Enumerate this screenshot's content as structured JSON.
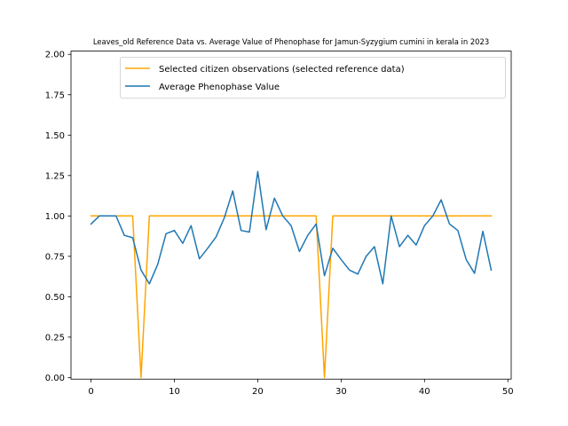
{
  "chart_data": {
    "type": "line",
    "title": "Leaves_old Reference Data vs. Average Value of Phenophase for Jamun-Syzygium cumini in kerala in 2023",
    "xlabel": "",
    "ylabel": "",
    "xlim": [
      -2.4,
      50.4
    ],
    "ylim": [
      -0.01,
      2.02
    ],
    "xticks": [
      0,
      10,
      20,
      30,
      40,
      50
    ],
    "yticks": [
      0.0,
      0.25,
      0.5,
      0.75,
      1.0,
      1.25,
      1.5,
      1.75,
      2.0
    ],
    "grid": false,
    "legend_position": "top-right",
    "series": [
      {
        "name": "Selected citizen observations (selected reference data)",
        "color": "#ffa500",
        "x": [
          0,
          1,
          2,
          3,
          4,
          5,
          6,
          7,
          8,
          9,
          10,
          11,
          12,
          13,
          14,
          15,
          16,
          17,
          18,
          19,
          20,
          21,
          22,
          23,
          24,
          25,
          26,
          27,
          28,
          29,
          30,
          31,
          32,
          33,
          34,
          35,
          36,
          37,
          38,
          39,
          40,
          41,
          42,
          43,
          44,
          45,
          46,
          47,
          48
        ],
        "y": [
          1,
          1,
          1,
          1,
          1,
          1,
          0,
          1,
          1,
          1,
          1,
          1,
          1,
          1,
          1,
          1,
          1,
          1,
          1,
          1,
          1,
          1,
          1,
          1,
          1,
          1,
          1,
          1,
          0,
          1,
          1,
          1,
          1,
          1,
          1,
          1,
          1,
          1,
          1,
          1,
          1,
          1,
          1,
          1,
          1,
          1,
          1,
          1,
          1
        ]
      },
      {
        "name": "Average Phenophase Value",
        "color": "#1f77b4",
        "x": [
          0,
          1,
          2,
          3,
          4,
          5,
          6,
          7,
          8,
          9,
          10,
          11,
          12,
          13,
          14,
          15,
          16,
          17,
          18,
          19,
          20,
          21,
          22,
          23,
          24,
          25,
          26,
          27,
          28,
          29,
          30,
          31,
          32,
          33,
          34,
          35,
          36,
          37,
          38,
          39,
          40,
          41,
          42,
          43,
          44,
          45,
          46,
          47,
          48
        ],
        "y": [
          0.95,
          1.0,
          1.0,
          1.0,
          0.88,
          0.865,
          0.665,
          0.58,
          0.7,
          0.89,
          0.91,
          0.83,
          0.94,
          0.735,
          0.8,
          0.87,
          0.99,
          1.155,
          0.91,
          0.9,
          1.275,
          0.915,
          1.11,
          1.0,
          0.94,
          0.78,
          0.88,
          0.95,
          0.63,
          0.8,
          0.73,
          0.665,
          0.64,
          0.75,
          0.81,
          0.58,
          1.0,
          0.81,
          0.88,
          0.82,
          0.94,
          1.0,
          1.1,
          0.95,
          0.91,
          0.73,
          0.645,
          0.905,
          0.665
        ]
      }
    ]
  }
}
